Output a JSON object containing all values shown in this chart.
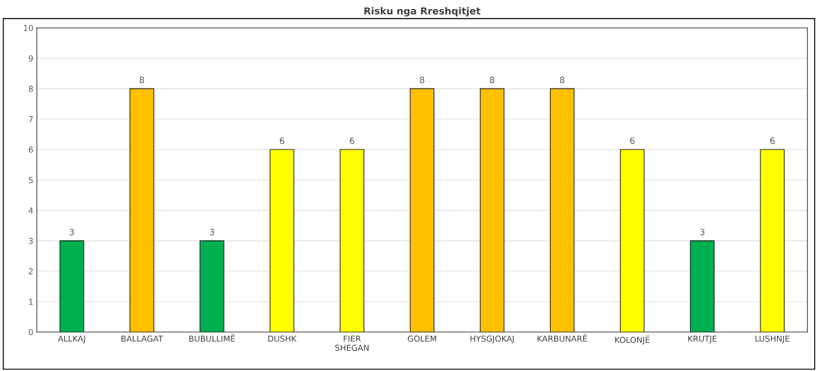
{
  "chart_data": {
    "type": "bar",
    "title": "Risku nga Rreshqitjet",
    "categories": [
      "ALLKAJ",
      "BALLAGAT",
      "BUBULLIMË",
      "DUSHK",
      "FIER\nSHEGAN",
      "GOLEM",
      "HYSGJOKAJ",
      "KARBUNARË",
      "KOLONJË",
      "KRUTJE",
      "LUSHNJE"
    ],
    "values": [
      3,
      8,
      3,
      6,
      6,
      8,
      8,
      8,
      6,
      3,
      6
    ],
    "colors": [
      "#00b050",
      "#ffc000",
      "#00b050",
      "#ffff00",
      "#ffff00",
      "#ffc000",
      "#ffc000",
      "#ffc000",
      "#ffff00",
      "#00b050",
      "#ffff00"
    ],
    "ylim": [
      0,
      10
    ],
    "yticks": [
      0,
      1,
      2,
      3,
      4,
      5,
      6,
      7,
      8,
      9,
      10
    ],
    "grid": "y",
    "data_labels": true
  }
}
